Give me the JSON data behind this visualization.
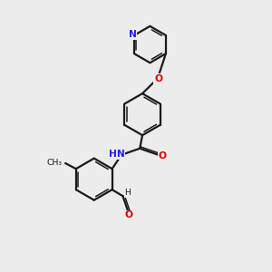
{
  "bg": "#ececec",
  "bond_color": "#1a1a1a",
  "N_color": "#2020ff",
  "O_color": "#e00000",
  "C_color": "#1a1a1a",
  "lw": 1.6,
  "lw_inner": 1.1,
  "fs": 7.2,
  "figsize": [
    3.0,
    3.0
  ],
  "dpi": 100,
  "xlim": [
    0,
    10
  ],
  "ylim": [
    0,
    10.5
  ]
}
